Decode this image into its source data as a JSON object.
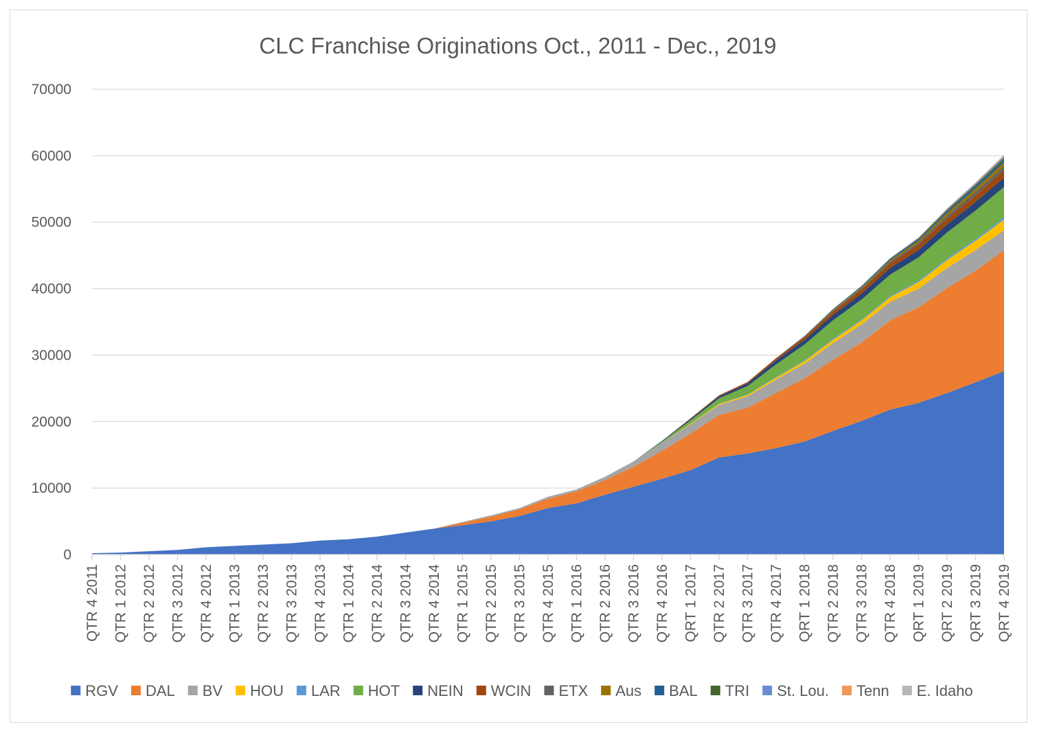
{
  "chart_data": {
    "type": "area",
    "stacked": true,
    "title": "CLC Franchise Originations Oct., 2011 - Dec., 2019",
    "xlabel": "",
    "ylabel": "",
    "ylim": [
      0,
      70000
    ],
    "y_ticks": [
      0,
      10000,
      20000,
      30000,
      40000,
      50000,
      60000,
      70000
    ],
    "grid": true,
    "legend_position": "bottom",
    "categories": [
      "QTR 4 2011",
      "QTR 1 2012",
      "QTR 2 2012",
      "QTR 3 2012",
      "QTR 4 2012",
      "QTR 1 2013",
      "QTR 2 2013",
      "QTR 3 2013",
      "QTR 4 2013",
      "QTR 1 2014",
      "QTR 2 2014",
      "QTR 3 2014",
      "QTR 4 2014",
      "QTR 1 2015",
      "QTR 2 2015",
      "QTR 3 2015",
      "QTR 4 2015",
      "QTR 1 2016",
      "QTR 2 2016",
      "QTR 3 2016",
      "QTR 4 2016",
      "QRT 1 2017",
      "QTR 2 2017",
      "QTR 3 2017",
      "QTR 4 2017",
      "QRT 1 2018",
      "QTR 2 2018",
      "QTR 3 2018",
      "QTR 4 2018",
      "QRT 1 2019",
      "QRT 2 2019",
      "QRT 3 2019",
      "QRT 4 2019"
    ],
    "series": [
      {
        "name": "RGV",
        "color": "#4472C4",
        "values": [
          200,
          300,
          500,
          700,
          1100,
          1300,
          1500,
          1700,
          2100,
          2300,
          2700,
          3300,
          3900,
          4400,
          5000,
          5800,
          7000,
          7700,
          9000,
          10200,
          11400,
          12700,
          14600,
          15200,
          16000,
          17000,
          18600,
          20100,
          21800,
          22800,
          24300,
          25900,
          27600
        ]
      },
      {
        "name": "DAL",
        "color": "#ED7D31",
        "values": [
          0,
          0,
          0,
          0,
          0,
          0,
          0,
          0,
          0,
          0,
          0,
          0,
          0,
          400,
          700,
          1000,
          1400,
          1800,
          2200,
          3000,
          4200,
          5500,
          6400,
          6900,
          8300,
          9500,
          10700,
          11800,
          13400,
          14400,
          15800,
          16800,
          18200
        ]
      },
      {
        "name": "BV",
        "color": "#A5A5A5",
        "values": [
          0,
          0,
          0,
          0,
          0,
          0,
          0,
          0,
          0,
          0,
          0,
          0,
          0,
          100,
          200,
          200,
          300,
          300,
          500,
          800,
          1200,
          1400,
          1500,
          1700,
          2000,
          2200,
          2500,
          2700,
          2800,
          2800,
          3000,
          3100,
          3000
        ]
      },
      {
        "name": "HOU",
        "color": "#FFC000",
        "values": [
          0,
          0,
          0,
          0,
          0,
          0,
          0,
          0,
          0,
          0,
          0,
          0,
          0,
          0,
          0,
          0,
          0,
          0,
          0,
          0,
          0,
          100,
          150,
          200,
          300,
          400,
          500,
          600,
          700,
          1000,
          1200,
          1400,
          1600
        ]
      },
      {
        "name": "LAR",
        "color": "#5B9BD5",
        "values": [
          0,
          0,
          0,
          0,
          0,
          0,
          0,
          0,
          0,
          0,
          0,
          0,
          0,
          0,
          0,
          0,
          0,
          0,
          0,
          0,
          0,
          0,
          50,
          50,
          100,
          100,
          150,
          150,
          200,
          200,
          250,
          250,
          300
        ]
      },
      {
        "name": "HOT",
        "color": "#70AD47",
        "values": [
          0,
          0,
          0,
          0,
          0,
          0,
          0,
          0,
          0,
          0,
          0,
          0,
          0,
          0,
          0,
          0,
          0,
          0,
          0,
          0,
          200,
          500,
          800,
          1300,
          1900,
          2400,
          2800,
          3000,
          3200,
          3500,
          3900,
          4300,
          4600
        ]
      },
      {
        "name": "NEIN",
        "color": "#264478",
        "values": [
          0,
          0,
          0,
          0,
          0,
          0,
          0,
          0,
          0,
          0,
          0,
          0,
          0,
          0,
          0,
          0,
          0,
          0,
          0,
          0,
          100,
          200,
          300,
          400,
          600,
          700,
          800,
          900,
          1000,
          1100,
          1200,
          1300,
          1400
        ]
      },
      {
        "name": "WCIN",
        "color": "#9E480E",
        "values": [
          0,
          0,
          0,
          0,
          0,
          0,
          0,
          0,
          0,
          0,
          0,
          0,
          0,
          0,
          0,
          0,
          0,
          0,
          0,
          0,
          0,
          100,
          150,
          200,
          300,
          400,
          500,
          600,
          700,
          800,
          900,
          1000,
          1100
        ]
      },
      {
        "name": "ETX",
        "color": "#636363",
        "values": [
          0,
          0,
          0,
          0,
          0,
          0,
          0,
          0,
          0,
          0,
          0,
          0,
          0,
          0,
          0,
          0,
          0,
          0,
          0,
          0,
          0,
          0,
          0,
          0,
          50,
          100,
          150,
          200,
          250,
          300,
          400,
          500,
          600
        ]
      },
      {
        "name": "Aus",
        "color": "#997300",
        "values": [
          0,
          0,
          0,
          0,
          0,
          0,
          0,
          0,
          0,
          0,
          0,
          0,
          0,
          0,
          0,
          0,
          0,
          0,
          0,
          0,
          0,
          0,
          0,
          0,
          0,
          50,
          100,
          150,
          200,
          300,
          400,
          500,
          600
        ]
      },
      {
        "name": "BAL",
        "color": "#255E91",
        "values": [
          0,
          0,
          0,
          0,
          0,
          0,
          0,
          0,
          0,
          0,
          0,
          0,
          0,
          0,
          0,
          0,
          0,
          0,
          0,
          0,
          0,
          0,
          0,
          0,
          0,
          50,
          80,
          100,
          150,
          200,
          250,
          300,
          350
        ]
      },
      {
        "name": "TRI",
        "color": "#43682B",
        "values": [
          0,
          0,
          0,
          0,
          0,
          0,
          0,
          0,
          0,
          0,
          0,
          0,
          0,
          0,
          0,
          0,
          0,
          0,
          0,
          0,
          0,
          0,
          0,
          0,
          0,
          0,
          50,
          80,
          100,
          150,
          200,
          250,
          300
        ]
      },
      {
        "name": "St. Lou.",
        "color": "#698ED0",
        "values": [
          0,
          0,
          0,
          0,
          0,
          0,
          0,
          0,
          0,
          0,
          0,
          0,
          0,
          0,
          0,
          0,
          0,
          0,
          0,
          0,
          0,
          0,
          0,
          0,
          0,
          0,
          0,
          50,
          80,
          100,
          150,
          200,
          250
        ]
      },
      {
        "name": "Tenn",
        "color": "#F1975A",
        "values": [
          0,
          0,
          0,
          0,
          0,
          0,
          0,
          0,
          0,
          0,
          0,
          0,
          0,
          0,
          0,
          0,
          0,
          0,
          0,
          0,
          0,
          0,
          0,
          0,
          0,
          0,
          0,
          0,
          0,
          50,
          80,
          100,
          150
        ]
      },
      {
        "name": "E. Idaho",
        "color": "#B7B7B7",
        "values": [
          0,
          0,
          0,
          0,
          0,
          0,
          0,
          0,
          0,
          0,
          0,
          0,
          0,
          0,
          0,
          0,
          0,
          0,
          0,
          0,
          0,
          0,
          0,
          0,
          0,
          0,
          0,
          0,
          0,
          0,
          50,
          80,
          100
        ]
      }
    ]
  }
}
